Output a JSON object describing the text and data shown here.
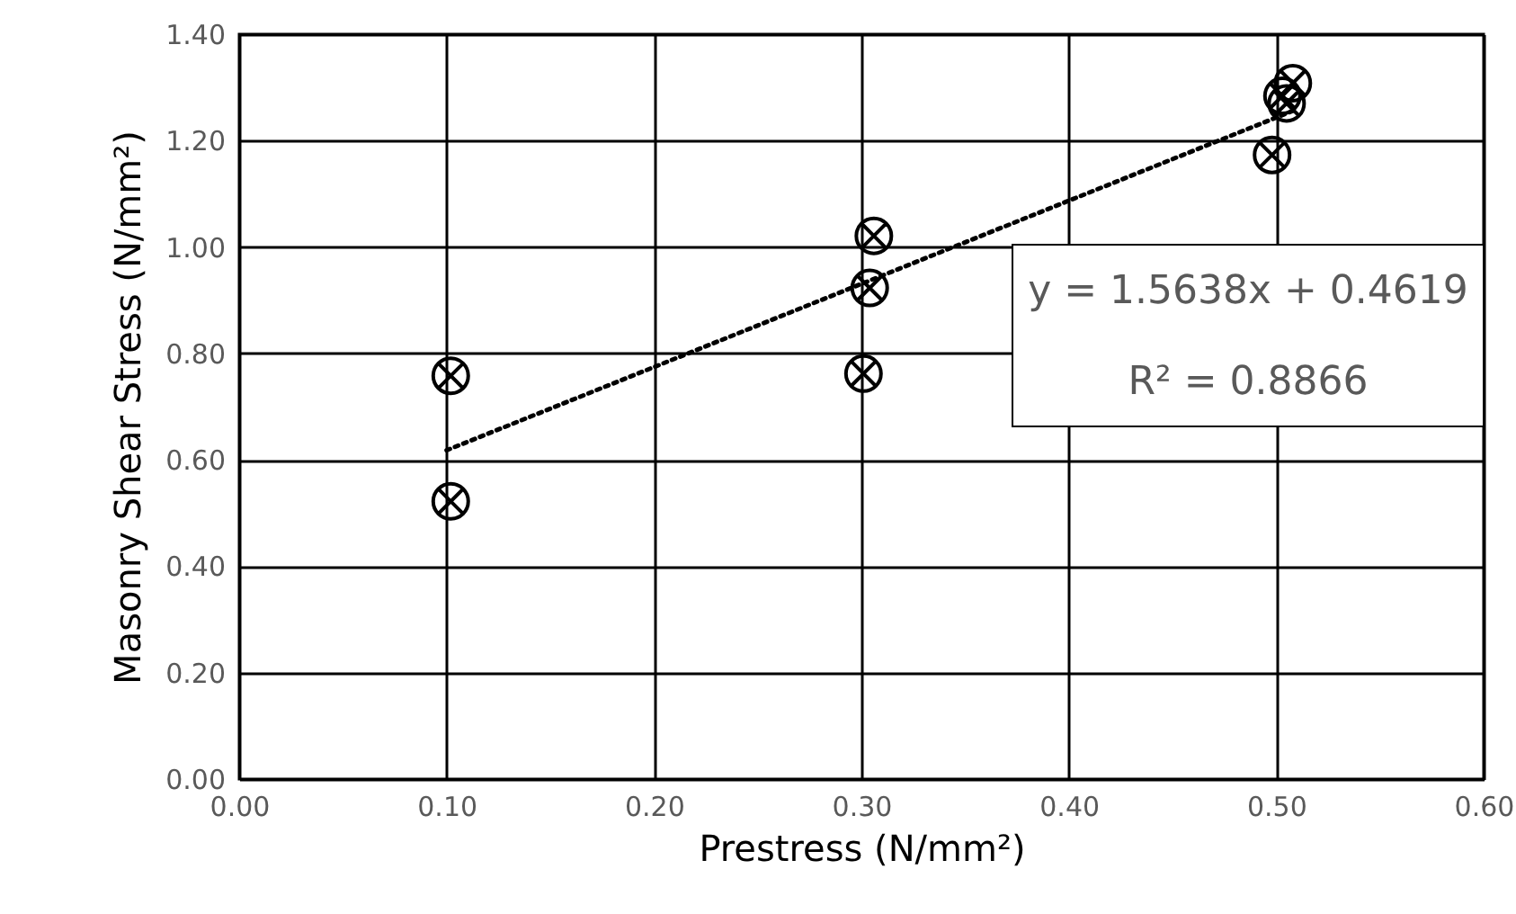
{
  "chart_data": {
    "type": "scatter",
    "xlabel": "Prestress (N/mm²)",
    "ylabel": "Masonry Shear Stress (N/mm²)",
    "xlim": [
      0,
      0.6
    ],
    "ylim": [
      0,
      1.4
    ],
    "xticks": [
      {
        "value": 0,
        "label": "0.00"
      },
      {
        "value": 0.1,
        "label": "0.10"
      },
      {
        "value": 0.2,
        "label": "0.20"
      },
      {
        "value": 0.3,
        "label": "0.30"
      },
      {
        "value": 0.4,
        "label": "0.40"
      },
      {
        "value": 0.5,
        "label": "0.50"
      },
      {
        "value": 0.6,
        "label": "0.60"
      }
    ],
    "yticks": [
      {
        "value": 0,
        "label": "0.00"
      },
      {
        "value": 0.2,
        "label": "0.20"
      },
      {
        "value": 0.4,
        "label": "0.40"
      },
      {
        "value": 0.6,
        "label": "0.60"
      },
      {
        "value": 0.8,
        "label": "0.80"
      },
      {
        "value": 1.0,
        "label": "1.00"
      },
      {
        "value": 1.2,
        "label": "1.20"
      },
      {
        "value": 1.4,
        "label": "1.40"
      }
    ],
    "grid": true,
    "series": [
      {
        "marker": "cross",
        "color": "#000000",
        "x": [
          0.102,
          0.102,
          0.301,
          0.304,
          0.306,
          0.498,
          0.503,
          0.505,
          0.508
        ],
        "values": [
          0.758,
          0.522,
          0.762,
          0.923,
          1.021,
          1.173,
          1.284,
          1.27,
          1.308
        ]
      },
      {
        "type": "line",
        "color": "#000000",
        "line_style": "dotted",
        "x": [
          0.1,
          0.51
        ],
        "values": [
          0.618,
          1.259
        ]
      }
    ],
    "annotations": [
      "y = 1.5638x + 0.4619",
      "R² = 0.8866"
    ]
  }
}
